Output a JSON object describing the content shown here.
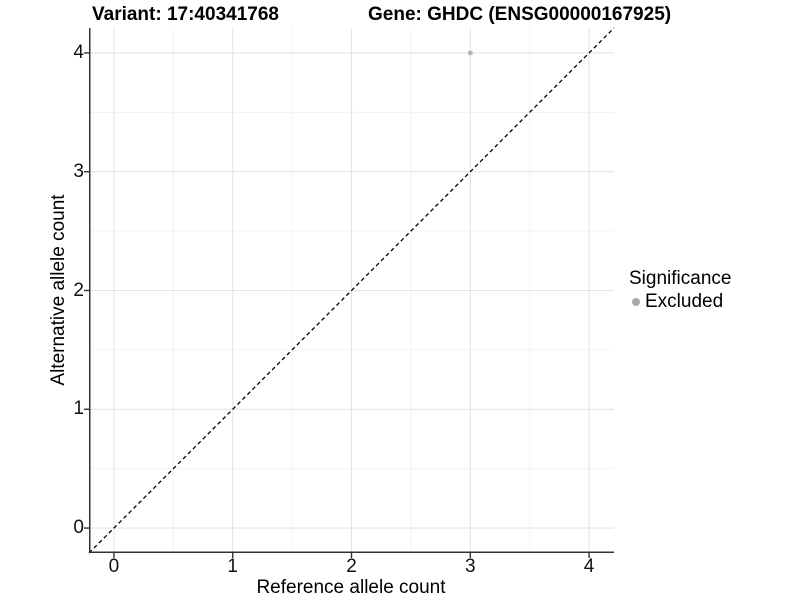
{
  "chart_data": {
    "type": "scatter",
    "title_left": "Variant: 17:40341768",
    "title_right": "Gene: GHDC (ENSG00000167925)",
    "xlabel": "Reference allele count",
    "ylabel": "Alternative allele count",
    "xlim": [
      -0.21,
      4.21
    ],
    "ylim": [
      -0.21,
      4.21
    ],
    "major_ticks": [
      0,
      1,
      2,
      3,
      4
    ],
    "minor_ticks": [
      0.5,
      1.5,
      2.5,
      3.5
    ],
    "points": [
      {
        "x": 3,
        "y": 4,
        "significance": "Excluded",
        "color": "#b7b7b7",
        "r": 2.5
      }
    ],
    "abline": {
      "slope": 1,
      "intercept": 0,
      "color": "#000000",
      "dash": "4 3",
      "width": 1.3
    },
    "grid": {
      "major_color": "#e4e4e4",
      "minor_color": "#f1f1f1",
      "major_width": 1.1,
      "minor_width": 0.8
    },
    "axis_color": "#333333",
    "tick_color": "#333333",
    "legend": {
      "title": "Significance",
      "position": "right",
      "items": [
        {
          "label": "Excluded",
          "color": "#a8a8a8"
        }
      ]
    }
  }
}
